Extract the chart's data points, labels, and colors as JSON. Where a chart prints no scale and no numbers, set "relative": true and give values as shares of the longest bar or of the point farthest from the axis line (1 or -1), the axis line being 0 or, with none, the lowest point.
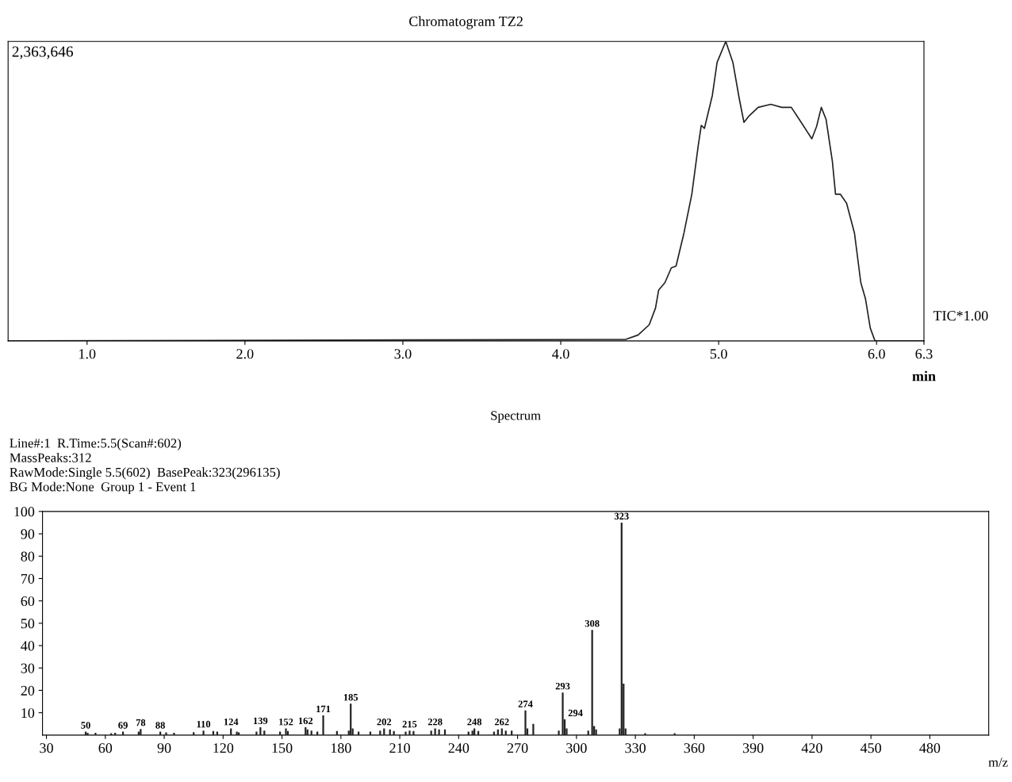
{
  "chart_data": [
    {
      "type": "line",
      "title": "Chromatogram TZ2",
      "xlabel": "min",
      "relative": true,
      "tick_labels": "x",
      "xlim": [
        0.5,
        6.3
      ],
      "xticks": [
        {
          "value": 1,
          "label": "1.0"
        },
        {
          "value": 2,
          "label": "2.0"
        },
        {
          "value": 3,
          "label": "3.0"
        },
        {
          "value": 4,
          "label": "4.0"
        },
        {
          "value": 5,
          "label": "5.0"
        },
        {
          "value": 6,
          "label": "6.0"
        },
        6.3
      ],
      "annotations": [
        "2,363,646",
        "TIC*1.00"
      ],
      "series": [
        {
          "color": "#222222",
          "x": [
            0.5,
            4.29,
            4.41,
            4.49,
            4.56,
            4.6,
            4.62,
            4.66,
            4.7,
            4.73,
            4.78,
            4.83,
            4.87,
            4.89,
            4.91,
            4.96,
            4.99,
            5.045,
            5.09,
            5.13,
            5.16,
            5.19,
            5.25,
            5.33,
            5.4,
            5.46,
            5.51,
            5.59,
            5.62,
            5.65,
            5.68,
            5.72,
            5.74,
            5.77,
            5.81,
            5.86,
            5.9,
            5.93,
            5.96,
            5.99,
            6.3
          ],
          "values": [
            0,
            0.005,
            0.005,
            0.02,
            0.054,
            0.11,
            0.17,
            0.195,
            0.244,
            0.25,
            0.36,
            0.49,
            0.65,
            0.72,
            0.71,
            0.82,
            0.93,
            1.0,
            0.93,
            0.81,
            0.73,
            0.75,
            0.78,
            0.79,
            0.78,
            0.78,
            0.74,
            0.675,
            0.716,
            0.78,
            0.74,
            0.6,
            0.49,
            0.49,
            0.46,
            0.36,
            0.195,
            0.14,
            0.043,
            0,
            0
          ]
        }
      ]
    },
    {
      "type": "bar",
      "title": "Spectrum",
      "xlabel": "m/z",
      "xlim": [
        28,
        510
      ],
      "ylim": [
        0,
        100
      ],
      "xticks": [
        30,
        60,
        90,
        120,
        150,
        180,
        210,
        240,
        270,
        300,
        330,
        360,
        390,
        420,
        450,
        480
      ],
      "yticks": [
        10,
        20,
        30,
        40,
        50,
        60,
        70,
        80,
        90,
        100
      ],
      "annotations": [
        "Line#:1  R.Time:5.5(Scan#:602)",
        "MassPeaks:312",
        "RawMode:Single 5.5(602)  BasePeak:323(296135)",
        "BG Mode:None  Group 1 - Event 1",
        {
          "text": "50",
          "x": 50,
          "y": 1.5
        },
        {
          "text": "69",
          "x": 69,
          "y": 1.5
        },
        {
          "text": "78",
          "x": 78,
          "y": 2.7
        },
        {
          "text": "88",
          "x": 88,
          "y": 1.5
        },
        {
          "text": "110",
          "x": 110,
          "y": 2
        },
        {
          "text": "124",
          "x": 124,
          "y": 3
        },
        {
          "text": "139",
          "x": 139,
          "y": 3.5
        },
        {
          "text": "152",
          "x": 152,
          "y": 3
        },
        {
          "text": "162",
          "x": 162,
          "y": 3.5
        },
        {
          "text": "171",
          "x": 171,
          "y": 8.8
        },
        {
          "text": "185",
          "x": 185,
          "y": 14
        },
        {
          "text": "202",
          "x": 202,
          "y": 3
        },
        {
          "text": "215",
          "x": 215,
          "y": 2
        },
        {
          "text": "228",
          "x": 228,
          "y": 3
        },
        {
          "text": "248",
          "x": 248,
          "y": 3
        },
        {
          "text": "262",
          "x": 262,
          "y": 3
        },
        {
          "text": "274",
          "x": 274,
          "y": 11
        },
        {
          "text": "293",
          "x": 293,
          "y": 19
        },
        {
          "text": "294",
          "x": 294,
          "y": 7
        },
        {
          "text": "308",
          "x": 308,
          "y": 47
        },
        {
          "text": "323",
          "x": 323,
          "y": 95
        }
      ],
      "series": [
        {
          "color": "#222222",
          "x": [
            50,
            51,
            55,
            63,
            65,
            69,
            77,
            78,
            88,
            91,
            95,
            105,
            110,
            115,
            117,
            124,
            127,
            128,
            137,
            139,
            141,
            149,
            152,
            153,
            162,
            163,
            165,
            168,
            171,
            178,
            184,
            185,
            186,
            189,
            195,
            200,
            202,
            205,
            207,
            213,
            215,
            217,
            226,
            228,
            230,
            233,
            245,
            247,
            248,
            250,
            258,
            260,
            262,
            264,
            267,
            274,
            275,
            278,
            291,
            293,
            294,
            295,
            306,
            308,
            309,
            310,
            322,
            323,
            324,
            325,
            335,
            350
          ],
          "values": [
            1.5,
            1,
            1,
            0.8,
            1,
            1.5,
            1.5,
            2.7,
            1.5,
            1.2,
            1,
            1.3,
            2,
            1.8,
            1.5,
            3,
            1.5,
            1.2,
            1.5,
            3.5,
            2,
            1.5,
            3,
            1.8,
            3.5,
            2.5,
            2,
            1.5,
            8.8,
            1.8,
            2,
            14,
            3,
            1.5,
            1.5,
            2,
            3,
            2.5,
            1.8,
            1.5,
            2,
            1.8,
            2,
            3,
            2.5,
            2.5,
            1.5,
            2,
            3,
            1.8,
            1.5,
            2.5,
            3,
            2,
            2,
            11,
            3,
            5,
            2,
            19,
            7,
            3,
            2,
            47,
            4,
            2.5,
            3,
            95,
            23,
            3,
            0.8,
            0.8
          ]
        }
      ]
    }
  ]
}
